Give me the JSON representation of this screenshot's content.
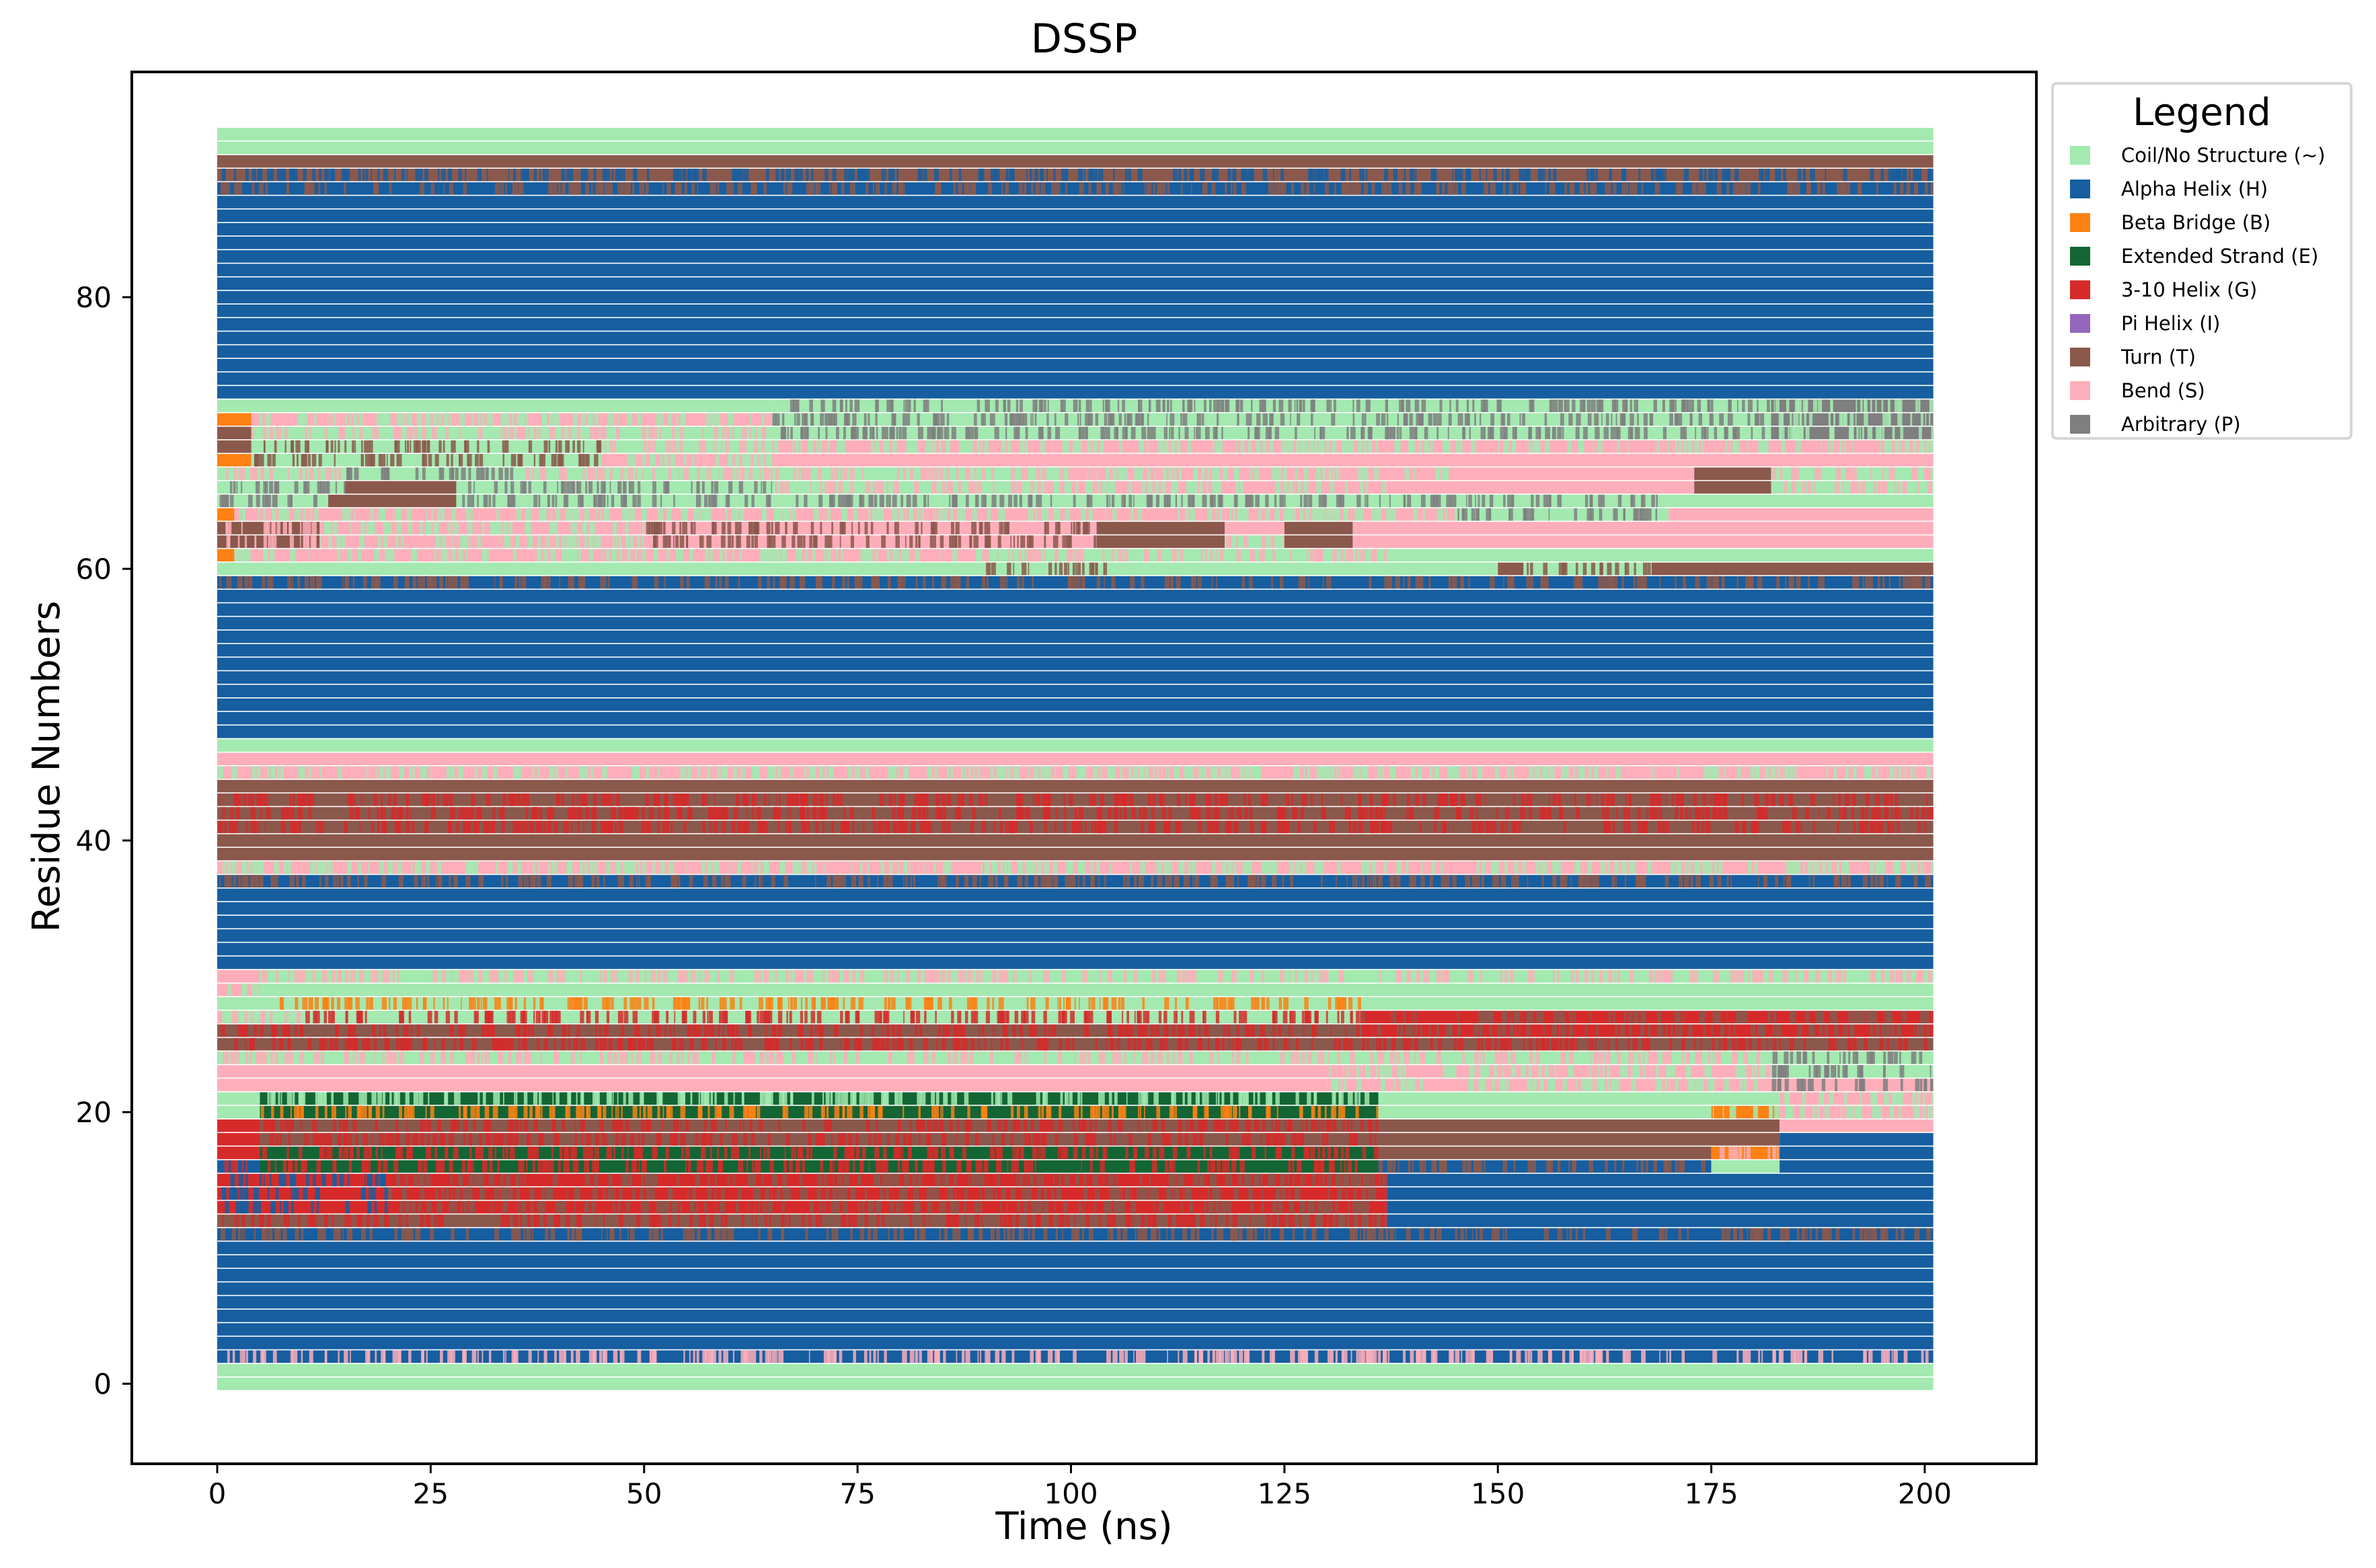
{
  "figure": {
    "title": "DSSP",
    "xlabel": "Time (ns)",
    "ylabel": "Residue Numbers",
    "legend_title": "Legend"
  },
  "legend": [
    {
      "code": "C",
      "label": "Coil/No Structure (~)",
      "color": "#a3e9b0"
    },
    {
      "code": "H",
      "label": "Alpha Helix (H)",
      "color": "#165ea0"
    },
    {
      "code": "B",
      "label": "Beta Bridge (B)",
      "color": "#fd8113"
    },
    {
      "code": "E",
      "label": "Extended Strand (E)",
      "color": "#136534"
    },
    {
      "code": "G",
      "label": "3-10 Helix (G)",
      "color": "#d62a2a"
    },
    {
      "code": "I",
      "label": "Pi Helix (I)",
      "color": "#9467bd"
    },
    {
      "code": "T",
      "label": "Turn (T)",
      "color": "#8b584c"
    },
    {
      "code": "S",
      "label": "Bend (S)",
      "color": "#fdaeba"
    },
    {
      "code": "P",
      "label": "Arbitrary (P)",
      "color": "#7f7f7f"
    }
  ],
  "chart_data": {
    "type": "heatmap",
    "title": "DSSP",
    "xlabel": "Time (ns)",
    "ylabel": "Residue Numbers",
    "xlim": [
      -10,
      210
    ],
    "ylim": [
      -2,
      94
    ],
    "xticks": [
      0,
      25,
      50,
      75,
      100,
      125,
      150,
      175,
      200
    ],
    "yticks": [
      0,
      20,
      40,
      60,
      80
    ],
    "grid": false,
    "legend_position": "outside right, top",
    "time_range_ns": [
      0,
      200
    ],
    "residue_range": [
      0,
      92
    ],
    "categories": [
      "C",
      "H",
      "B",
      "E",
      "G",
      "I",
      "T",
      "S",
      "P"
    ],
    "rows_note": "Each residue row lists time segments [start_ns, end_ns, dominant_code, mix_code]; mix_code indicates frequent flicker with a second state.",
    "rows": {
      "92": [
        [
          0,
          201,
          "C",
          null
        ]
      ],
      "91": [
        [
          0,
          201,
          "C",
          null
        ]
      ],
      "90": [
        [
          0,
          201,
          "T",
          null
        ]
      ],
      "89": [
        [
          0,
          201,
          "T",
          "H"
        ]
      ],
      "88": [
        [
          0,
          201,
          "H",
          "T"
        ]
      ],
      "87": [
        [
          0,
          201,
          "H",
          null
        ]
      ],
      "86": [
        [
          0,
          201,
          "H",
          null
        ]
      ],
      "85": [
        [
          0,
          201,
          "H",
          null
        ]
      ],
      "84": [
        [
          0,
          201,
          "H",
          null
        ]
      ],
      "83": [
        [
          0,
          201,
          "H",
          null
        ]
      ],
      "82": [
        [
          0,
          201,
          "H",
          null
        ]
      ],
      "81": [
        [
          0,
          201,
          "H",
          null
        ]
      ],
      "80": [
        [
          0,
          201,
          "H",
          null
        ]
      ],
      "79": [
        [
          0,
          201,
          "H",
          null
        ]
      ],
      "78": [
        [
          0,
          201,
          "H",
          null
        ]
      ],
      "77": [
        [
          0,
          201,
          "H",
          null
        ]
      ],
      "76": [
        [
          0,
          201,
          "H",
          null
        ]
      ],
      "75": [
        [
          0,
          201,
          "H",
          null
        ]
      ],
      "74": [
        [
          0,
          201,
          "H",
          null
        ]
      ],
      "73": [
        [
          0,
          201,
          "H",
          null
        ]
      ],
      "72": [
        [
          0,
          65,
          "C",
          null
        ],
        [
          65,
          182,
          "C",
          "P"
        ],
        [
          182,
          201,
          "P",
          "C"
        ]
      ],
      "71": [
        [
          0,
          4,
          "B",
          null
        ],
        [
          4,
          65,
          "S",
          "C"
        ],
        [
          65,
          182,
          "C",
          "P"
        ],
        [
          182,
          201,
          "P",
          "C"
        ]
      ],
      "70": [
        [
          0,
          4,
          "T",
          null
        ],
        [
          4,
          65,
          "C",
          "S"
        ],
        [
          65,
          182,
          "C",
          "P"
        ],
        [
          182,
          201,
          "P",
          "C"
        ]
      ],
      "69": [
        [
          0,
          4,
          "T",
          null
        ],
        [
          4,
          45,
          "C",
          "T"
        ],
        [
          45,
          66,
          "C",
          "S"
        ],
        [
          66,
          201,
          "S",
          "C"
        ]
      ],
      "68": [
        [
          0,
          4,
          "B",
          null
        ],
        [
          4,
          45,
          "C",
          "T"
        ],
        [
          45,
          65,
          "S",
          "C"
        ],
        [
          65,
          201,
          "S",
          null
        ]
      ],
      "67": [
        [
          0,
          15,
          "C",
          "S"
        ],
        [
          15,
          35,
          "C",
          "P"
        ],
        [
          35,
          100,
          "C",
          "S"
        ],
        [
          100,
          145,
          "S",
          "C"
        ],
        [
          145,
          173,
          "S",
          null
        ],
        [
          173,
          182,
          "T",
          null
        ],
        [
          182,
          201,
          "C",
          "S"
        ]
      ],
      "66": [
        [
          0,
          15,
          "C",
          "P"
        ],
        [
          15,
          28,
          "T",
          null
        ],
        [
          28,
          65,
          "C",
          "P"
        ],
        [
          65,
          100,
          "C",
          "S"
        ],
        [
          100,
          137,
          "S",
          "C"
        ],
        [
          137,
          173,
          "S",
          null
        ],
        [
          173,
          182,
          "T",
          null
        ],
        [
          182,
          201,
          "C",
          "S"
        ]
      ],
      "65": [
        [
          0,
          13,
          "C",
          "P"
        ],
        [
          13,
          28,
          "T",
          null
        ],
        [
          28,
          65,
          "C",
          "P"
        ],
        [
          65,
          170,
          "C",
          "P"
        ],
        [
          170,
          201,
          "C",
          null
        ]
      ],
      "64": [
        [
          0,
          2,
          "B",
          null
        ],
        [
          2,
          45,
          "S",
          "C"
        ],
        [
          45,
          145,
          "S",
          "C"
        ],
        [
          145,
          170,
          "C",
          "P"
        ],
        [
          170,
          201,
          "S",
          null
        ]
      ],
      "63": [
        [
          0,
          12,
          "T",
          "S"
        ],
        [
          12,
          50,
          "S",
          "C"
        ],
        [
          50,
          103,
          "S",
          "T"
        ],
        [
          103,
          118,
          "T",
          null
        ],
        [
          118,
          125,
          "S",
          null
        ],
        [
          125,
          133,
          "T",
          null
        ],
        [
          133,
          201,
          "S",
          null
        ]
      ],
      "62": [
        [
          0,
          12,
          "T",
          "S"
        ],
        [
          12,
          50,
          "S",
          "C"
        ],
        [
          50,
          103,
          "S",
          "T"
        ],
        [
          103,
          118,
          "T",
          null
        ],
        [
          118,
          125,
          "C",
          "S"
        ],
        [
          125,
          133,
          "T",
          null
        ],
        [
          133,
          201,
          "S",
          null
        ]
      ],
      "61": [
        [
          0,
          2,
          "B",
          null
        ],
        [
          2,
          90,
          "S",
          "C"
        ],
        [
          90,
          137,
          "C",
          "S"
        ],
        [
          137,
          170,
          "C",
          null
        ],
        [
          170,
          201,
          "C",
          null
        ]
      ],
      "60": [
        [
          0,
          90,
          "C",
          null
        ],
        [
          90,
          105,
          "C",
          "T"
        ],
        [
          105,
          150,
          "C",
          null
        ],
        [
          150,
          153,
          "T",
          null
        ],
        [
          153,
          168,
          "C",
          "T"
        ],
        [
          168,
          201,
          "T",
          null
        ]
      ],
      "59": [
        [
          0,
          201,
          "H",
          "T"
        ]
      ],
      "58": [
        [
          0,
          201,
          "H",
          null
        ]
      ],
      "57": [
        [
          0,
          201,
          "H",
          null
        ]
      ],
      "56": [
        [
          0,
          201,
          "H",
          null
        ]
      ],
      "55": [
        [
          0,
          201,
          "H",
          null
        ]
      ],
      "54": [
        [
          0,
          201,
          "H",
          null
        ]
      ],
      "53": [
        [
          0,
          201,
          "H",
          null
        ]
      ],
      "52": [
        [
          0,
          201,
          "H",
          null
        ]
      ],
      "51": [
        [
          0,
          201,
          "H",
          null
        ]
      ],
      "50": [
        [
          0,
          201,
          "H",
          null
        ]
      ],
      "49": [
        [
          0,
          201,
          "H",
          null
        ]
      ],
      "48": [
        [
          0,
          201,
          "H",
          null
        ]
      ],
      "47": [
        [
          0,
          201,
          "C",
          null
        ]
      ],
      "46": [
        [
          0,
          201,
          "S",
          null
        ]
      ],
      "45": [
        [
          0,
          201,
          "S",
          "C"
        ]
      ],
      "44": [
        [
          0,
          201,
          "T",
          null
        ]
      ],
      "43": [
        [
          0,
          201,
          "T",
          "G"
        ]
      ],
      "42": [
        [
          0,
          201,
          "T",
          "G"
        ]
      ],
      "41": [
        [
          0,
          201,
          "T",
          "G"
        ]
      ],
      "40": [
        [
          0,
          201,
          "T",
          null
        ]
      ],
      "39": [
        [
          0,
          201,
          "T",
          null
        ]
      ],
      "38": [
        [
          0,
          201,
          "S",
          "C"
        ]
      ],
      "37": [
        [
          0,
          201,
          "H",
          "T"
        ]
      ],
      "36": [
        [
          0,
          201,
          "H",
          null
        ]
      ],
      "35": [
        [
          0,
          201,
          "H",
          null
        ]
      ],
      "34": [
        [
          0,
          201,
          "H",
          null
        ]
      ],
      "33": [
        [
          0,
          201,
          "H",
          null
        ]
      ],
      "32": [
        [
          0,
          201,
          "H",
          null
        ]
      ],
      "31": [
        [
          0,
          201,
          "H",
          null
        ]
      ],
      "30": [
        [
          0,
          5,
          "S",
          null
        ],
        [
          5,
          201,
          "C",
          "S"
        ]
      ],
      "29": [
        [
          0,
          5,
          "S",
          "C"
        ],
        [
          5,
          201,
          "C",
          null
        ]
      ],
      "28": [
        [
          0,
          7,
          "C",
          null
        ],
        [
          7,
          134,
          "C",
          "B"
        ],
        [
          134,
          201,
          "C",
          null
        ]
      ],
      "27": [
        [
          0,
          10,
          "C",
          "S"
        ],
        [
          10,
          134,
          "C",
          "G"
        ],
        [
          134,
          201,
          "G",
          "T"
        ]
      ],
      "26": [
        [
          0,
          134,
          "T",
          "G"
        ],
        [
          134,
          201,
          "G",
          "T"
        ]
      ],
      "25": [
        [
          0,
          134,
          "T",
          "G"
        ],
        [
          134,
          201,
          "T",
          "G"
        ]
      ],
      "24": [
        [
          0,
          182,
          "C",
          "S"
        ],
        [
          182,
          201,
          "C",
          "P"
        ]
      ],
      "23": [
        [
          0,
          130,
          "S",
          null
        ],
        [
          130,
          182,
          "S",
          "C"
        ],
        [
          182,
          201,
          "C",
          "P"
        ]
      ],
      "22": [
        [
          0,
          130,
          "S",
          null
        ],
        [
          130,
          182,
          "S",
          "C"
        ],
        [
          182,
          201,
          "S",
          "P"
        ]
      ],
      "21": [
        [
          0,
          5,
          "C",
          null
        ],
        [
          5,
          136,
          "E",
          "C"
        ],
        [
          136,
          183,
          "C",
          null
        ],
        [
          183,
          201,
          "S",
          "C"
        ]
      ],
      "20": [
        [
          0,
          5,
          "C",
          null
        ],
        [
          5,
          136,
          "E",
          "B"
        ],
        [
          136,
          175,
          "C",
          null
        ],
        [
          175,
          183,
          "B",
          "C"
        ],
        [
          183,
          201,
          "S",
          "C"
        ]
      ],
      "19": [
        [
          0,
          5,
          "G",
          null
        ],
        [
          5,
          136,
          "T",
          "G"
        ],
        [
          136,
          183,
          "T",
          null
        ],
        [
          183,
          201,
          "S",
          null
        ]
      ],
      "18": [
        [
          0,
          5,
          "G",
          null
        ],
        [
          5,
          136,
          "T",
          "G"
        ],
        [
          136,
          183,
          "T",
          null
        ],
        [
          183,
          201,
          "H",
          null
        ]
      ],
      "17": [
        [
          0,
          5,
          "G",
          null
        ],
        [
          5,
          136,
          "E",
          "G"
        ],
        [
          136,
          175,
          "T",
          null
        ],
        [
          175,
          183,
          "B",
          "S"
        ],
        [
          183,
          201,
          "H",
          null
        ]
      ],
      "16": [
        [
          0,
          5,
          "H",
          "G"
        ],
        [
          5,
          136,
          "E",
          "G"
        ],
        [
          136,
          175,
          "H",
          "T"
        ],
        [
          175,
          183,
          "C",
          null
        ],
        [
          183,
          201,
          "H",
          null
        ]
      ],
      "15": [
        [
          0,
          20,
          "G",
          "H"
        ],
        [
          20,
          137,
          "G",
          "T"
        ],
        [
          137,
          201,
          "H",
          null
        ]
      ],
      "14": [
        [
          0,
          20,
          "G",
          "H"
        ],
        [
          20,
          137,
          "G",
          "T"
        ],
        [
          137,
          201,
          "H",
          null
        ]
      ],
      "13": [
        [
          0,
          20,
          "G",
          "H"
        ],
        [
          20,
          137,
          "G",
          "T"
        ],
        [
          137,
          201,
          "H",
          null
        ]
      ],
      "12": [
        [
          0,
          137,
          "T",
          "G"
        ],
        [
          137,
          201,
          "H",
          null
        ]
      ],
      "11": [
        [
          0,
          201,
          "H",
          "T"
        ]
      ],
      "10": [
        [
          0,
          201,
          "H",
          null
        ]
      ],
      "9": [
        [
          0,
          201,
          "H",
          null
        ]
      ],
      "8": [
        [
          0,
          201,
          "H",
          null
        ]
      ],
      "7": [
        [
          0,
          201,
          "H",
          null
        ]
      ],
      "6": [
        [
          0,
          201,
          "H",
          null
        ]
      ],
      "5": [
        [
          0,
          201,
          "H",
          null
        ]
      ],
      "4": [
        [
          0,
          201,
          "H",
          null
        ]
      ],
      "3": [
        [
          0,
          201,
          "H",
          null
        ]
      ],
      "2": [
        [
          0,
          201,
          "H",
          "S"
        ]
      ],
      "1": [
        [
          0,
          201,
          "C",
          null
        ]
      ],
      "0": [
        [
          0,
          201,
          "C",
          null
        ]
      ]
    }
  }
}
